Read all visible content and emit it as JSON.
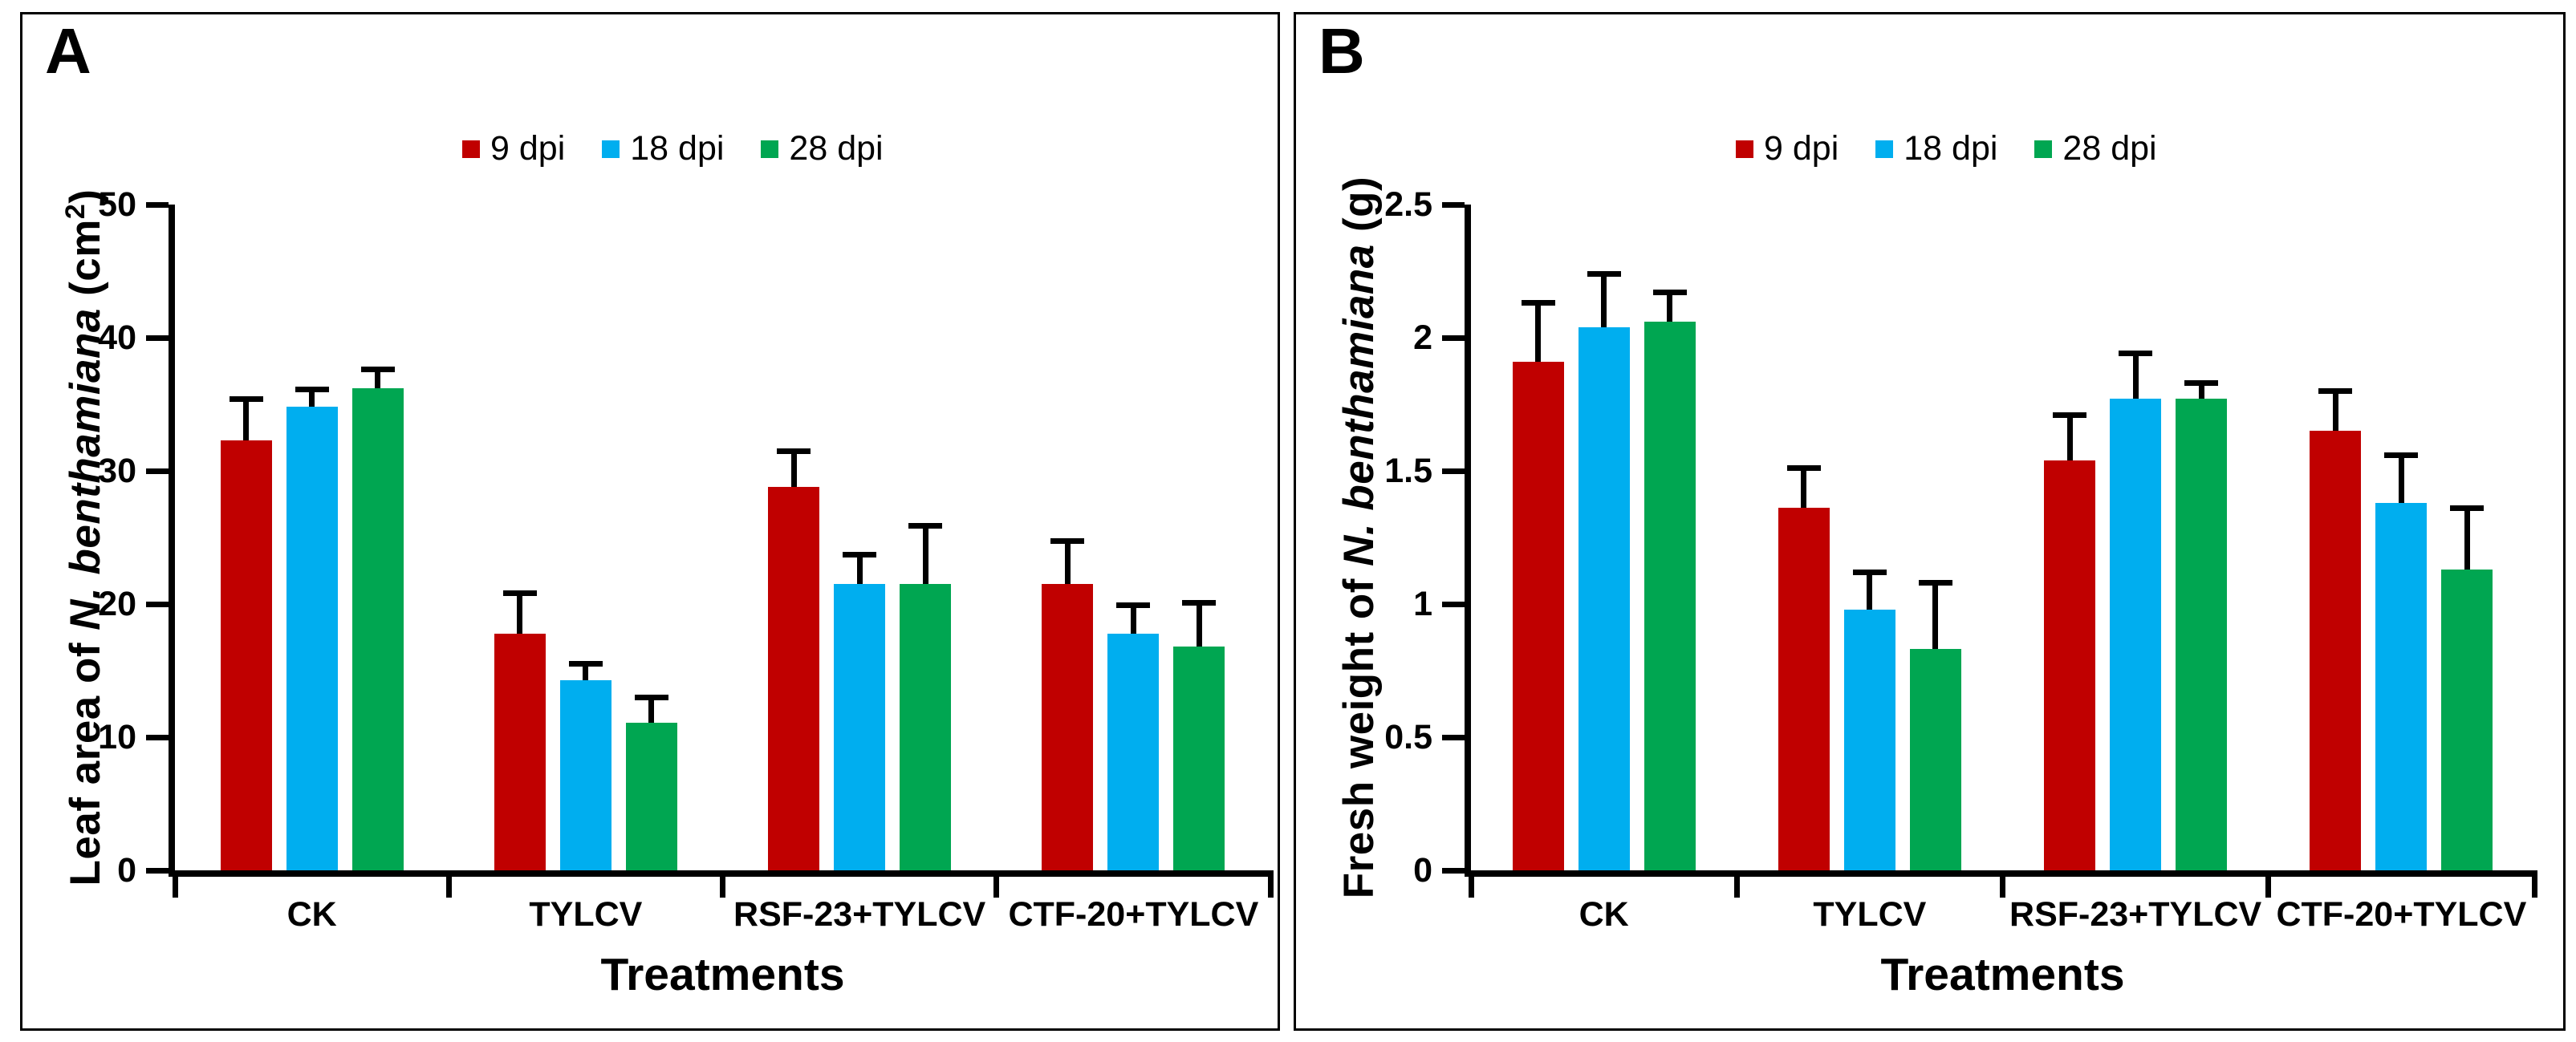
{
  "chart_data": [
    {
      "type": "bar",
      "panel_label": "A",
      "ylabel": {
        "prefix": "Leaf area of ",
        "species": "N. benthamiana",
        "unit_pre": " (cm",
        "sup": "2",
        "unit_post": ")"
      },
      "xlabel": "Treatments",
      "categories": [
        "CK",
        "TYLCV",
        "RSF-23+TYLCV",
        "CTF-20+TYLCV"
      ],
      "series": [
        {
          "name": "9 dpi",
          "color": "#C00000",
          "values": [
            32.3,
            17.8,
            28.8,
            21.5
          ],
          "errors": [
            3.1,
            3.0,
            2.7,
            3.2
          ]
        },
        {
          "name": "18 dpi",
          "color": "#00AEEF",
          "values": [
            34.8,
            14.3,
            21.5,
            17.8
          ],
          "errors": [
            1.3,
            1.2,
            2.2,
            2.1
          ]
        },
        {
          "name": "28 dpi",
          "color": "#00A651",
          "values": [
            36.2,
            11.1,
            21.5,
            16.8
          ],
          "errors": [
            1.4,
            1.9,
            4.4,
            3.3
          ]
        }
      ],
      "ylim": [
        0,
        50
      ],
      "yticks": [
        0,
        10,
        20,
        30,
        40,
        50
      ],
      "error_bars": "upper",
      "grid": false,
      "legend_position": "top-center",
      "axis_color": "#000000"
    },
    {
      "type": "bar",
      "panel_label": "B",
      "ylabel": {
        "prefix": "Fresh weight of ",
        "species": "N. benthamiana",
        "unit_pre": " (g)",
        "sup": "",
        "unit_post": ""
      },
      "xlabel": "Treatments",
      "categories": [
        "CK",
        "TYLCV",
        "RSF-23+TYLCV",
        "CTF-20+TYLCV"
      ],
      "series": [
        {
          "name": "9 dpi",
          "color": "#C00000",
          "values": [
            1.91,
            1.36,
            1.54,
            1.65
          ],
          "errors": [
            0.22,
            0.15,
            0.17,
            0.15
          ]
        },
        {
          "name": "18 dpi",
          "color": "#00AEEF",
          "values": [
            2.04,
            0.98,
            1.77,
            1.38
          ],
          "errors": [
            0.2,
            0.14,
            0.17,
            0.18
          ]
        },
        {
          "name": "28 dpi",
          "color": "#00A651",
          "values": [
            2.06,
            0.83,
            1.77,
            1.13
          ],
          "errors": [
            0.11,
            0.25,
            0.06,
            0.23
          ]
        }
      ],
      "ylim": [
        0,
        2.5
      ],
      "yticks": [
        0,
        0.5,
        1,
        1.5,
        2,
        2.5
      ],
      "error_bars": "upper",
      "grid": false,
      "legend_position": "top-center",
      "axis_color": "#000000"
    }
  ]
}
